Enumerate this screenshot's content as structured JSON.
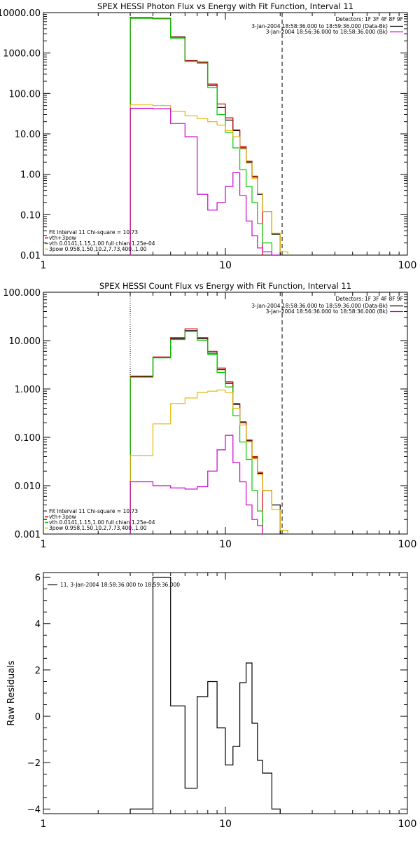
{
  "chart_data": [
    {
      "type": "line",
      "title": "SPEX HESSI Photon Flux vs Energy with Fit Function, Interval 11",
      "xscale": "log",
      "yscale": "log",
      "xlim": [
        1,
        100
      ],
      "ylim": [
        0.01,
        10000
      ],
      "x_ticks": [
        {
          "v": 1,
          "label": "1"
        },
        {
          "v": 10,
          "label": "10"
        },
        {
          "v": 100,
          "label": "100"
        }
      ],
      "y_ticks": [
        {
          "v": 0.01,
          "label": "0.01"
        },
        {
          "v": 0.1,
          "label": "0.10"
        },
        {
          "v": 1,
          "label": "1.00"
        },
        {
          "v": 10,
          "label": "10.00"
        },
        {
          "v": 100,
          "label": "100.00"
        },
        {
          "v": 1000,
          "label": "1000.00"
        },
        {
          "v": 10000,
          "label": "10000.00"
        }
      ],
      "legend_top_right": {
        "header": "Detectors: 1F 3F 4F 8F 9F",
        "entries": [
          {
            "text": "3-Jan-2004 18:58:36.000 to 18:59:36.000 (Data-Bk)",
            "color": "#000000"
          },
          {
            "text": "3-Jan-2004 18:56:36.000 to 18:58:36.000 (Bk)",
            "color": "#cc00cc"
          }
        ]
      },
      "legend_bottom_left": [
        {
          "text": "Fit Interval 11    Chi-square = 10.73",
          "color": "#000000"
        },
        {
          "text": "vth+3pow",
          "color": "#cc0000"
        },
        {
          "text": "vth 0.0141,1.15,1.00  full chian 1.25e-04",
          "color": "#00cc00"
        },
        {
          "text": "3pow 0.958,1.50,10.2,7.73,400.,1.00",
          "color": "#e6b800"
        }
      ],
      "vlines": [
        {
          "x": 3.0,
          "style": "dotted",
          "color": "#000000"
        },
        {
          "x": 20.5,
          "style": "dashed",
          "color": "#000000"
        }
      ],
      "edges": [
        3.0,
        4.0,
        5.0,
        6.0,
        7.0,
        8.0,
        9.0,
        10.0,
        11.0,
        12.0,
        13.0,
        14.0,
        15.0,
        16.0,
        18.0,
        20.0,
        22.0,
        25.0
      ],
      "series": [
        {
          "name": "",
          "color": "#000000",
          "values": [
            7500,
            7200,
            2500,
            650,
            600,
            160,
            45,
            22,
            12,
            4.5,
            2.0,
            0.85,
            0.32,
            0.12,
            0.033,
            0.009
          ]
        },
        {
          "name": "",
          "color": "#cc0000",
          "values": [
            7400,
            7100,
            2450,
            640,
            590,
            170,
            55,
            25,
            12.5,
            4.8,
            2.1,
            0.9,
            0.33,
            null,
            null,
            null
          ]
        },
        {
          "name": "",
          "color": "#00cc00",
          "values": [
            7200,
            7000,
            2300,
            620,
            560,
            140,
            30,
            11,
            4.5,
            1.3,
            0.5,
            0.2,
            0.06,
            0.02,
            null,
            null
          ]
        },
        {
          "name": "",
          "color": "#e6b800",
          "values": [
            52,
            50,
            36,
            28,
            24,
            20,
            16.5,
            12,
            8.5,
            4.2,
            1.9,
            0.78,
            0.33,
            0.12,
            0.035,
            0.012
          ]
        },
        {
          "name": "",
          "color": "#cc00cc",
          "values": [
            43,
            42,
            18,
            8.5,
            0.32,
            0.13,
            0.2,
            0.5,
            1.1,
            0.3,
            0.07,
            0.03,
            0.015,
            0.012,
            0.01,
            null
          ]
        }
      ]
    },
    {
      "type": "line",
      "title": "SPEX HESSI Count Flux vs Energy with Fit Function, Interval 11",
      "xscale": "log",
      "yscale": "log",
      "xlim": [
        1,
        100
      ],
      "ylim": [
        0.001,
        100
      ],
      "x_ticks": [
        {
          "v": 1,
          "label": "1"
        },
        {
          "v": 10,
          "label": "10"
        },
        {
          "v": 100,
          "label": "100"
        }
      ],
      "y_ticks": [
        {
          "v": 0.001,
          "label": "0.001"
        },
        {
          "v": 0.01,
          "label": "0.010"
        },
        {
          "v": 0.1,
          "label": "0.100"
        },
        {
          "v": 1,
          "label": "1.000"
        },
        {
          "v": 10,
          "label": "10.000"
        },
        {
          "v": 100,
          "label": "100.000"
        }
      ],
      "legend_top_right": {
        "header": "Detectors: 1F 3F 4F 8F 9F",
        "entries": [
          {
            "text": "3-Jan-2004 18:58:36.000 to 18:59:36.000 (Data-Bk)",
            "color": "#000000"
          },
          {
            "text": "3-Jan-2004 18:56:36.000 to 18:58:36.000 (Bk)",
            "color": "#cc00cc"
          }
        ]
      },
      "legend_bottom_left": [
        {
          "text": "Fit Interval 11    Chi-square = 10.73",
          "color": "#000000"
        },
        {
          "text": "vth+3pow",
          "color": "#cc0000"
        },
        {
          "text": "vth 0.0141,1.15,1.00  full chian 1.25e-04",
          "color": "#00cc00"
        },
        {
          "text": "3pow 0.958,1.50,10.2,7.73,400.,1.00",
          "color": "#e6b800"
        }
      ],
      "vlines": [
        {
          "x": 3.0,
          "style": "dotted",
          "color": "#000000"
        },
        {
          "x": 20.5,
          "style": "dashed",
          "color": "#000000"
        }
      ],
      "edges": [
        3.0,
        4.0,
        5.0,
        6.0,
        7.0,
        8.0,
        9.0,
        10.0,
        11.0,
        12.0,
        13.0,
        14.0,
        15.0,
        16.0,
        18.0,
        20.0,
        22.0,
        25.0
      ],
      "series": [
        {
          "name": "",
          "color": "#000000",
          "values": [
            1.8,
            4.5,
            11,
            16,
            11,
            5.5,
            2.5,
            1.3,
            0.48,
            0.2,
            0.085,
            0.038,
            0.018,
            0.008,
            0.004,
            0.001
          ]
        },
        {
          "name": "",
          "color": "#cc0000",
          "values": [
            1.85,
            4.6,
            11.5,
            17.5,
            11.5,
            6,
            2.7,
            1.4,
            0.5,
            0.21,
            0.088,
            0.04,
            0.019,
            null,
            null,
            null
          ]
        },
        {
          "name": "",
          "color": "#00cc00",
          "values": [
            1.75,
            4.4,
            10.5,
            15.5,
            10.2,
            5.2,
            2.2,
            1.1,
            0.28,
            0.08,
            0.035,
            0.008,
            0.003,
            null,
            null,
            null
          ]
        },
        {
          "name": "",
          "color": "#e6b800",
          "values": [
            0.042,
            0.19,
            0.5,
            0.65,
            0.85,
            0.9,
            0.95,
            0.85,
            0.4,
            0.18,
            0.08,
            0.036,
            0.017,
            0.008,
            0.0032,
            0.0012
          ]
        },
        {
          "name": "",
          "color": "#cc00cc",
          "values": [
            0.012,
            0.01,
            0.009,
            0.0085,
            0.0095,
            0.02,
            0.055,
            0.11,
            0.03,
            0.012,
            0.004,
            0.002,
            0.0015,
            null,
            null,
            null
          ]
        }
      ]
    },
    {
      "type": "line",
      "title": "",
      "ylabel": "Raw Residuals",
      "xscale": "log",
      "yscale": "linear",
      "xlim": [
        1,
        100
      ],
      "ylim": [
        -4.2,
        6.2
      ],
      "x_ticks": [
        {
          "v": 1,
          "label": "1"
        },
        {
          "v": 10,
          "label": "10"
        },
        {
          "v": 100,
          "label": "100"
        }
      ],
      "y_ticks": [
        {
          "v": -4,
          "label": "−4"
        },
        {
          "v": -2,
          "label": "−2"
        },
        {
          "v": 0,
          "label": "0"
        },
        {
          "v": 2,
          "label": "2"
        },
        {
          "v": 4,
          "label": "4"
        },
        {
          "v": 6,
          "label": "6"
        }
      ],
      "legend_top_left": [
        {
          "text": "11.  3-Jan-2004 18:58:36.000 to 18:59:36.000",
          "color": "#000000"
        }
      ],
      "edges": [
        3.0,
        4.0,
        5.0,
        6.0,
        7.0,
        8.0,
        9.0,
        10.0,
        11.0,
        12.0,
        13.0,
        14.0,
        15.0,
        16.0,
        18.0,
        20.0
      ],
      "series": [
        {
          "name": "",
          "color": "#000000",
          "values": [
            -4.0,
            6.0,
            0.45,
            -3.1,
            0.85,
            1.5,
            -0.5,
            -2.1,
            -1.3,
            1.45,
            2.3,
            -0.3,
            -1.9,
            -2.45,
            -4.0
          ]
        }
      ]
    }
  ]
}
